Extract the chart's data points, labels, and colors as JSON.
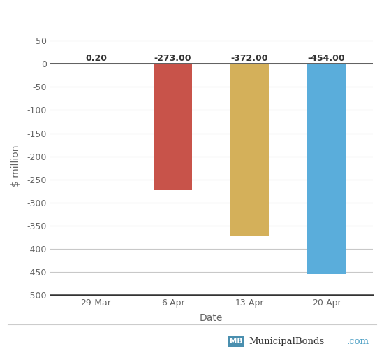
{
  "categories": [
    "29-Mar",
    "6-Apr",
    "13-Apr",
    "20-Apr"
  ],
  "values": [
    0.2,
    -273.0,
    -372.0,
    -454.0
  ],
  "bar_colors": [
    "#c8534a",
    "#c8534a",
    "#d4b05a",
    "#5aaddb"
  ],
  "xlabel": "Date",
  "ylabel": "$ million",
  "ylim": [
    -500,
    60
  ],
  "yticks": [
    50,
    0,
    -50,
    -100,
    -150,
    -200,
    -250,
    -300,
    -350,
    -400,
    -450,
    -500
  ],
  "bar_width": 0.5,
  "label_values": [
    "0.20",
    "-273.00",
    "-372.00",
    "-454.00"
  ],
  "background_color": "#ffffff",
  "grid_color": "#c8c8c8",
  "text_color": "#666666",
  "watermark_text": "MunicipalBonds",
  "watermark_com": ".com",
  "watermark_box_color": "#4a8faf",
  "mb_text_color": "#3a7a9f"
}
